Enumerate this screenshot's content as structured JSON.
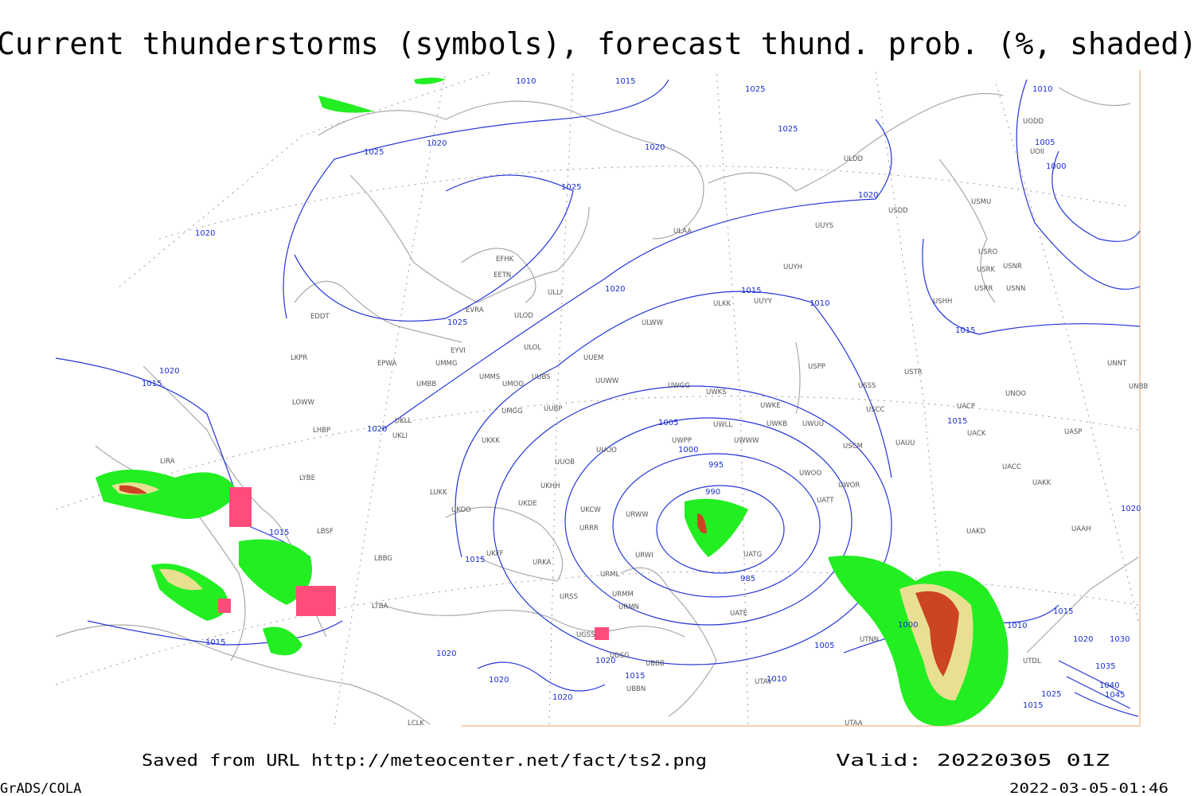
{
  "title": "Current thunderstorms (symbols), forecast thund. prob. (%, shaded)",
  "isobar_labels": [
    "1010",
    "1015",
    "1025",
    "1025",
    "1010",
    "1005",
    "1000",
    "1020",
    "1020",
    "1025",
    "1025",
    "1020",
    "1020",
    "1020",
    "1015",
    "1010",
    "1025",
    "1015",
    "1020",
    "1015",
    "1020",
    "1015",
    "1005",
    "1000",
    "995",
    "990",
    "1020",
    "1015",
    "1015",
    "985",
    "1015",
    "1000",
    "1010",
    "1015",
    "1005",
    "1020",
    "1030",
    "1020",
    "1020",
    "1015",
    "1020",
    "1010",
    "1035",
    "1040",
    "1045",
    "1025",
    "1020",
    "1015"
  ],
  "station_labels": [
    "EFHK",
    "EETN",
    "EVRA",
    "ULOD",
    "ULLI",
    "EDDT",
    "ULAA",
    "UUYH",
    "UUYY",
    "ULKK",
    "UUYS",
    "USDD",
    "USMU",
    "USRO",
    "USRK",
    "USNR",
    "USRR",
    "USNN",
    "USHH",
    "UODD",
    "UOII",
    "ULDD",
    "ULWW",
    "UUEM",
    "UUWW",
    "ULOL",
    "EYVI",
    "UMMG",
    "EPWA",
    "LKPR",
    "UMBB",
    "UMMS",
    "UMOO",
    "UUBS",
    "UWGG",
    "UWKS",
    "UWKE",
    "UWKB",
    "UWUU",
    "USSS",
    "USPP",
    "USTR",
    "UNOO",
    "UNNT",
    "UNBB",
    "USCC",
    "UACP",
    "UACK",
    "UASP",
    "UACC",
    "UAKK",
    "USCM",
    "UAUU",
    "UATT",
    "UWOO",
    "UWOR",
    "UWWW",
    "UWLL",
    "UWPP",
    "UMGG",
    "UUBP",
    "UKLL",
    "UKLI",
    "LOWW",
    "LHBP",
    "LIRA",
    "LYBE",
    "LBSF",
    "LBBG",
    "UKKK",
    "UUOO",
    "UUOB",
    "UKHH",
    "UKDE",
    "UKOO",
    "LUKK",
    "UKFF",
    "URKA",
    "URRR",
    "UKCW",
    "URWW",
    "URWI",
    "URML",
    "URMM",
    "URMN",
    "URSS",
    "LTBA",
    "UGSS",
    "UDSG",
    "UBBN",
    "UBBB",
    "UATG",
    "UATE",
    "UTNN",
    "UTAV",
    "UTAA",
    "UAKD",
    "UAAH",
    "UTDL",
    "LCLK"
  ],
  "footer": {
    "source": "Saved from URL  http://meteocenter.net/fact/ts2.png",
    "valid": "Valid: 20220305 01Z",
    "software": "GrADS/COLA",
    "timestamp": "2022-03-05-01:46"
  }
}
